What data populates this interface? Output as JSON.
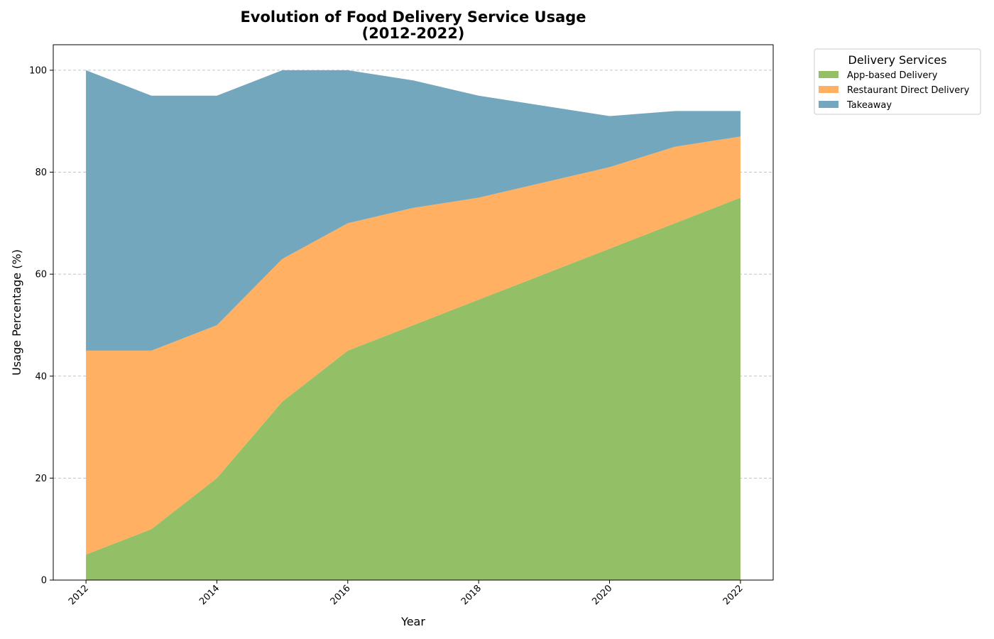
{
  "chart_data": {
    "type": "area",
    "stacked": true,
    "title": "Evolution of Food Delivery Service Usage\n(2012-2022)",
    "xlabel": "Year",
    "ylabel": "Usage Percentage (%)",
    "x": [
      2012,
      2013,
      2014,
      2015,
      2016,
      2017,
      2018,
      2019,
      2020,
      2021,
      2022
    ],
    "xticks": [
      "2012",
      "2014",
      "2016",
      "2018",
      "2020",
      "2022"
    ],
    "yticks": [
      "0",
      "20",
      "40",
      "60",
      "80",
      "100"
    ],
    "xlim": [
      2011.5,
      2022.5
    ],
    "ylim": [
      0,
      105
    ],
    "grid": "y-dashed",
    "legend": {
      "title": "Delivery Services",
      "placement": "outside-upper-right"
    },
    "series": [
      {
        "name": "App-based Delivery",
        "color": "#93c066",
        "values": [
          5,
          10,
          20,
          35,
          45,
          50,
          55,
          60,
          65,
          70,
          75
        ]
      },
      {
        "name": "Restaurant Direct Delivery",
        "color": "#ffb062",
        "values": [
          40,
          35,
          30,
          28,
          25,
          23,
          20,
          18,
          16,
          15,
          12
        ]
      },
      {
        "name": "Takeaway",
        "color": "#72a7be",
        "values": [
          55,
          50,
          45,
          37,
          30,
          25,
          20,
          15,
          10,
          7,
          5
        ]
      }
    ]
  }
}
